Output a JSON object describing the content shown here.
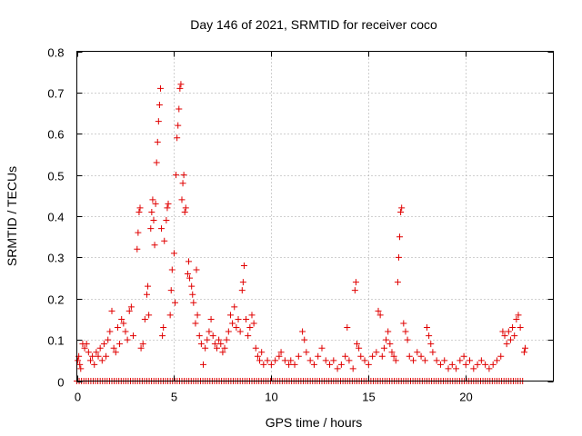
{
  "chart_data": {
    "type": "scatter",
    "title": "Day 146 of 2021, SRMTID for receiver coco",
    "xlabel": "GPS time / hours",
    "ylabel": "SRMTID / TECUs",
    "xlim": [
      0,
      24.5
    ],
    "ylim": [
      0,
      0.8
    ],
    "xticks": [
      0,
      5,
      10,
      15,
      20
    ],
    "xtick_labels": [
      "0",
      "5",
      "10",
      "15",
      "20"
    ],
    "yticks": [
      0,
      0.1,
      0.2,
      0.3,
      0.4,
      0.5,
      0.6,
      0.7,
      0.8
    ],
    "ytick_labels": [
      "0",
      "0.1",
      "0.2",
      "0.3",
      "0.4",
      "0.5",
      "0.6",
      "0.7",
      "0.8"
    ],
    "grid": true,
    "marker": "+",
    "color": "#e00000",
    "series": [
      {
        "name": "SRMTID",
        "points": [
          [
            0.05,
            0.05
          ],
          [
            0.1,
            0.06
          ],
          [
            0.15,
            0.04
          ],
          [
            0.2,
            0.03
          ],
          [
            0.3,
            0.09
          ],
          [
            0.4,
            0.08
          ],
          [
            0.5,
            0.09
          ],
          [
            0.6,
            0.07
          ],
          [
            0.7,
            0.05
          ],
          [
            0.8,
            0.06
          ],
          [
            0.9,
            0.04
          ],
          [
            1.0,
            0.07
          ],
          [
            1.1,
            0.06
          ],
          [
            1.2,
            0.08
          ],
          [
            1.3,
            0.05
          ],
          [
            1.4,
            0.09
          ],
          [
            1.5,
            0.06
          ],
          [
            1.6,
            0.1
          ],
          [
            1.7,
            0.12
          ],
          [
            1.8,
            0.17
          ],
          [
            1.9,
            0.08
          ],
          [
            2.0,
            0.07
          ],
          [
            2.1,
            0.13
          ],
          [
            2.2,
            0.09
          ],
          [
            2.3,
            0.15
          ],
          [
            2.4,
            0.14
          ],
          [
            2.5,
            0.12
          ],
          [
            2.6,
            0.1
          ],
          [
            2.7,
            0.17
          ],
          [
            2.8,
            0.18
          ],
          [
            2.9,
            0.11
          ],
          [
            3.1,
            0.32
          ],
          [
            3.15,
            0.36
          ],
          [
            3.2,
            0.41
          ],
          [
            3.25,
            0.42
          ],
          [
            3.3,
            0.08
          ],
          [
            3.4,
            0.09
          ],
          [
            3.5,
            0.15
          ],
          [
            3.6,
            0.21
          ],
          [
            3.65,
            0.23
          ],
          [
            3.7,
            0.16
          ],
          [
            3.8,
            0.37
          ],
          [
            3.85,
            0.41
          ],
          [
            3.9,
            0.44
          ],
          [
            3.95,
            0.39
          ],
          [
            4.0,
            0.33
          ],
          [
            4.05,
            0.43
          ],
          [
            4.1,
            0.53
          ],
          [
            4.15,
            0.58
          ],
          [
            4.2,
            0.63
          ],
          [
            4.25,
            0.67
          ],
          [
            4.3,
            0.71
          ],
          [
            4.35,
            0.37
          ],
          [
            4.4,
            0.11
          ],
          [
            4.45,
            0.13
          ],
          [
            4.5,
            0.34
          ],
          [
            4.6,
            0.39
          ],
          [
            4.65,
            0.42
          ],
          [
            4.7,
            0.43
          ],
          [
            4.8,
            0.16
          ],
          [
            4.85,
            0.22
          ],
          [
            4.9,
            0.27
          ],
          [
            5.0,
            0.31
          ],
          [
            5.05,
            0.19
          ],
          [
            5.1,
            0.5
          ],
          [
            5.15,
            0.59
          ],
          [
            5.2,
            0.62
          ],
          [
            5.25,
            0.66
          ],
          [
            5.3,
            0.71
          ],
          [
            5.35,
            0.72
          ],
          [
            5.4,
            0.44
          ],
          [
            5.45,
            0.48
          ],
          [
            5.5,
            0.5
          ],
          [
            5.55,
            0.41
          ],
          [
            5.6,
            0.42
          ],
          [
            5.7,
            0.26
          ],
          [
            5.75,
            0.29
          ],
          [
            5.8,
            0.25
          ],
          [
            5.9,
            0.23
          ],
          [
            5.95,
            0.21
          ],
          [
            6.0,
            0.19
          ],
          [
            6.1,
            0.14
          ],
          [
            6.15,
            0.27
          ],
          [
            6.2,
            0.16
          ],
          [
            6.3,
            0.11
          ],
          [
            6.4,
            0.09
          ],
          [
            6.5,
            0.04
          ],
          [
            6.6,
            0.08
          ],
          [
            6.7,
            0.1
          ],
          [
            6.8,
            0.12
          ],
          [
            6.9,
            0.15
          ],
          [
            7.0,
            0.11
          ],
          [
            7.1,
            0.09
          ],
          [
            7.2,
            0.08
          ],
          [
            7.3,
            0.1
          ],
          [
            7.4,
            0.09
          ],
          [
            7.5,
            0.07
          ],
          [
            7.6,
            0.08
          ],
          [
            7.7,
            0.1
          ],
          [
            7.8,
            0.12
          ],
          [
            7.9,
            0.16
          ],
          [
            8.0,
            0.14
          ],
          [
            8.1,
            0.18
          ],
          [
            8.2,
            0.13
          ],
          [
            8.3,
            0.15
          ],
          [
            8.4,
            0.12
          ],
          [
            8.5,
            0.22
          ],
          [
            8.55,
            0.24
          ],
          [
            8.6,
            0.28
          ],
          [
            8.7,
            0.15
          ],
          [
            8.8,
            0.11
          ],
          [
            8.9,
            0.13
          ],
          [
            9.0,
            0.16
          ],
          [
            9.1,
            0.14
          ],
          [
            9.2,
            0.08
          ],
          [
            9.3,
            0.06
          ],
          [
            9.4,
            0.05
          ],
          [
            9.5,
            0.07
          ],
          [
            9.6,
            0.04
          ],
          [
            9.8,
            0.05
          ],
          [
            10.0,
            0.04
          ],
          [
            10.2,
            0.05
          ],
          [
            10.4,
            0.06
          ],
          [
            10.5,
            0.07
          ],
          [
            10.7,
            0.05
          ],
          [
            10.9,
            0.04
          ],
          [
            11.0,
            0.05
          ],
          [
            11.2,
            0.04
          ],
          [
            11.4,
            0.06
          ],
          [
            11.6,
            0.12
          ],
          [
            11.7,
            0.1
          ],
          [
            11.8,
            0.07
          ],
          [
            12.0,
            0.05
          ],
          [
            12.2,
            0.04
          ],
          [
            12.4,
            0.06
          ],
          [
            12.6,
            0.08
          ],
          [
            12.8,
            0.05
          ],
          [
            13.0,
            0.04
          ],
          [
            13.2,
            0.05
          ],
          [
            13.4,
            0.03
          ],
          [
            13.6,
            0.04
          ],
          [
            13.8,
            0.06
          ],
          [
            13.9,
            0.13
          ],
          [
            14.0,
            0.05
          ],
          [
            14.2,
            0.03
          ],
          [
            14.3,
            0.22
          ],
          [
            14.35,
            0.24
          ],
          [
            14.4,
            0.09
          ],
          [
            14.5,
            0.08
          ],
          [
            14.6,
            0.06
          ],
          [
            14.8,
            0.05
          ],
          [
            15.0,
            0.04
          ],
          [
            15.2,
            0.06
          ],
          [
            15.4,
            0.07
          ],
          [
            15.5,
            0.17
          ],
          [
            15.6,
            0.16
          ],
          [
            15.7,
            0.06
          ],
          [
            15.8,
            0.08
          ],
          [
            15.9,
            0.1
          ],
          [
            16.0,
            0.12
          ],
          [
            16.1,
            0.09
          ],
          [
            16.2,
            0.07
          ],
          [
            16.3,
            0.06
          ],
          [
            16.4,
            0.05
          ],
          [
            16.5,
            0.24
          ],
          [
            16.55,
            0.3
          ],
          [
            16.6,
            0.35
          ],
          [
            16.65,
            0.41
          ],
          [
            16.7,
            0.42
          ],
          [
            16.8,
            0.14
          ],
          [
            16.9,
            0.12
          ],
          [
            17.0,
            0.1
          ],
          [
            17.1,
            0.06
          ],
          [
            17.3,
            0.05
          ],
          [
            17.5,
            0.07
          ],
          [
            17.7,
            0.06
          ],
          [
            17.9,
            0.05
          ],
          [
            18.0,
            0.13
          ],
          [
            18.1,
            0.11
          ],
          [
            18.2,
            0.09
          ],
          [
            18.3,
            0.07
          ],
          [
            18.5,
            0.05
          ],
          [
            18.7,
            0.04
          ],
          [
            18.9,
            0.05
          ],
          [
            19.1,
            0.03
          ],
          [
            19.3,
            0.04
          ],
          [
            19.5,
            0.03
          ],
          [
            19.7,
            0.05
          ],
          [
            19.9,
            0.06
          ],
          [
            20.0,
            0.04
          ],
          [
            20.2,
            0.05
          ],
          [
            20.4,
            0.03
          ],
          [
            20.6,
            0.04
          ],
          [
            20.8,
            0.05
          ],
          [
            21.0,
            0.04
          ],
          [
            21.2,
            0.03
          ],
          [
            21.4,
            0.04
          ],
          [
            21.6,
            0.05
          ],
          [
            21.8,
            0.06
          ],
          [
            21.9,
            0.12
          ],
          [
            22.0,
            0.11
          ],
          [
            22.1,
            0.09
          ],
          [
            22.2,
            0.12
          ],
          [
            22.3,
            0.1
          ],
          [
            22.4,
            0.13
          ],
          [
            22.5,
            0.11
          ],
          [
            22.6,
            0.15
          ],
          [
            22.7,
            0.16
          ],
          [
            22.8,
            0.13
          ],
          [
            23.0,
            0.07
          ],
          [
            23.05,
            0.08
          ]
        ],
        "zero_band": {
          "x_start": 0,
          "x_end": 23.0,
          "x_step": 0.12,
          "value": 0
        }
      }
    ]
  }
}
